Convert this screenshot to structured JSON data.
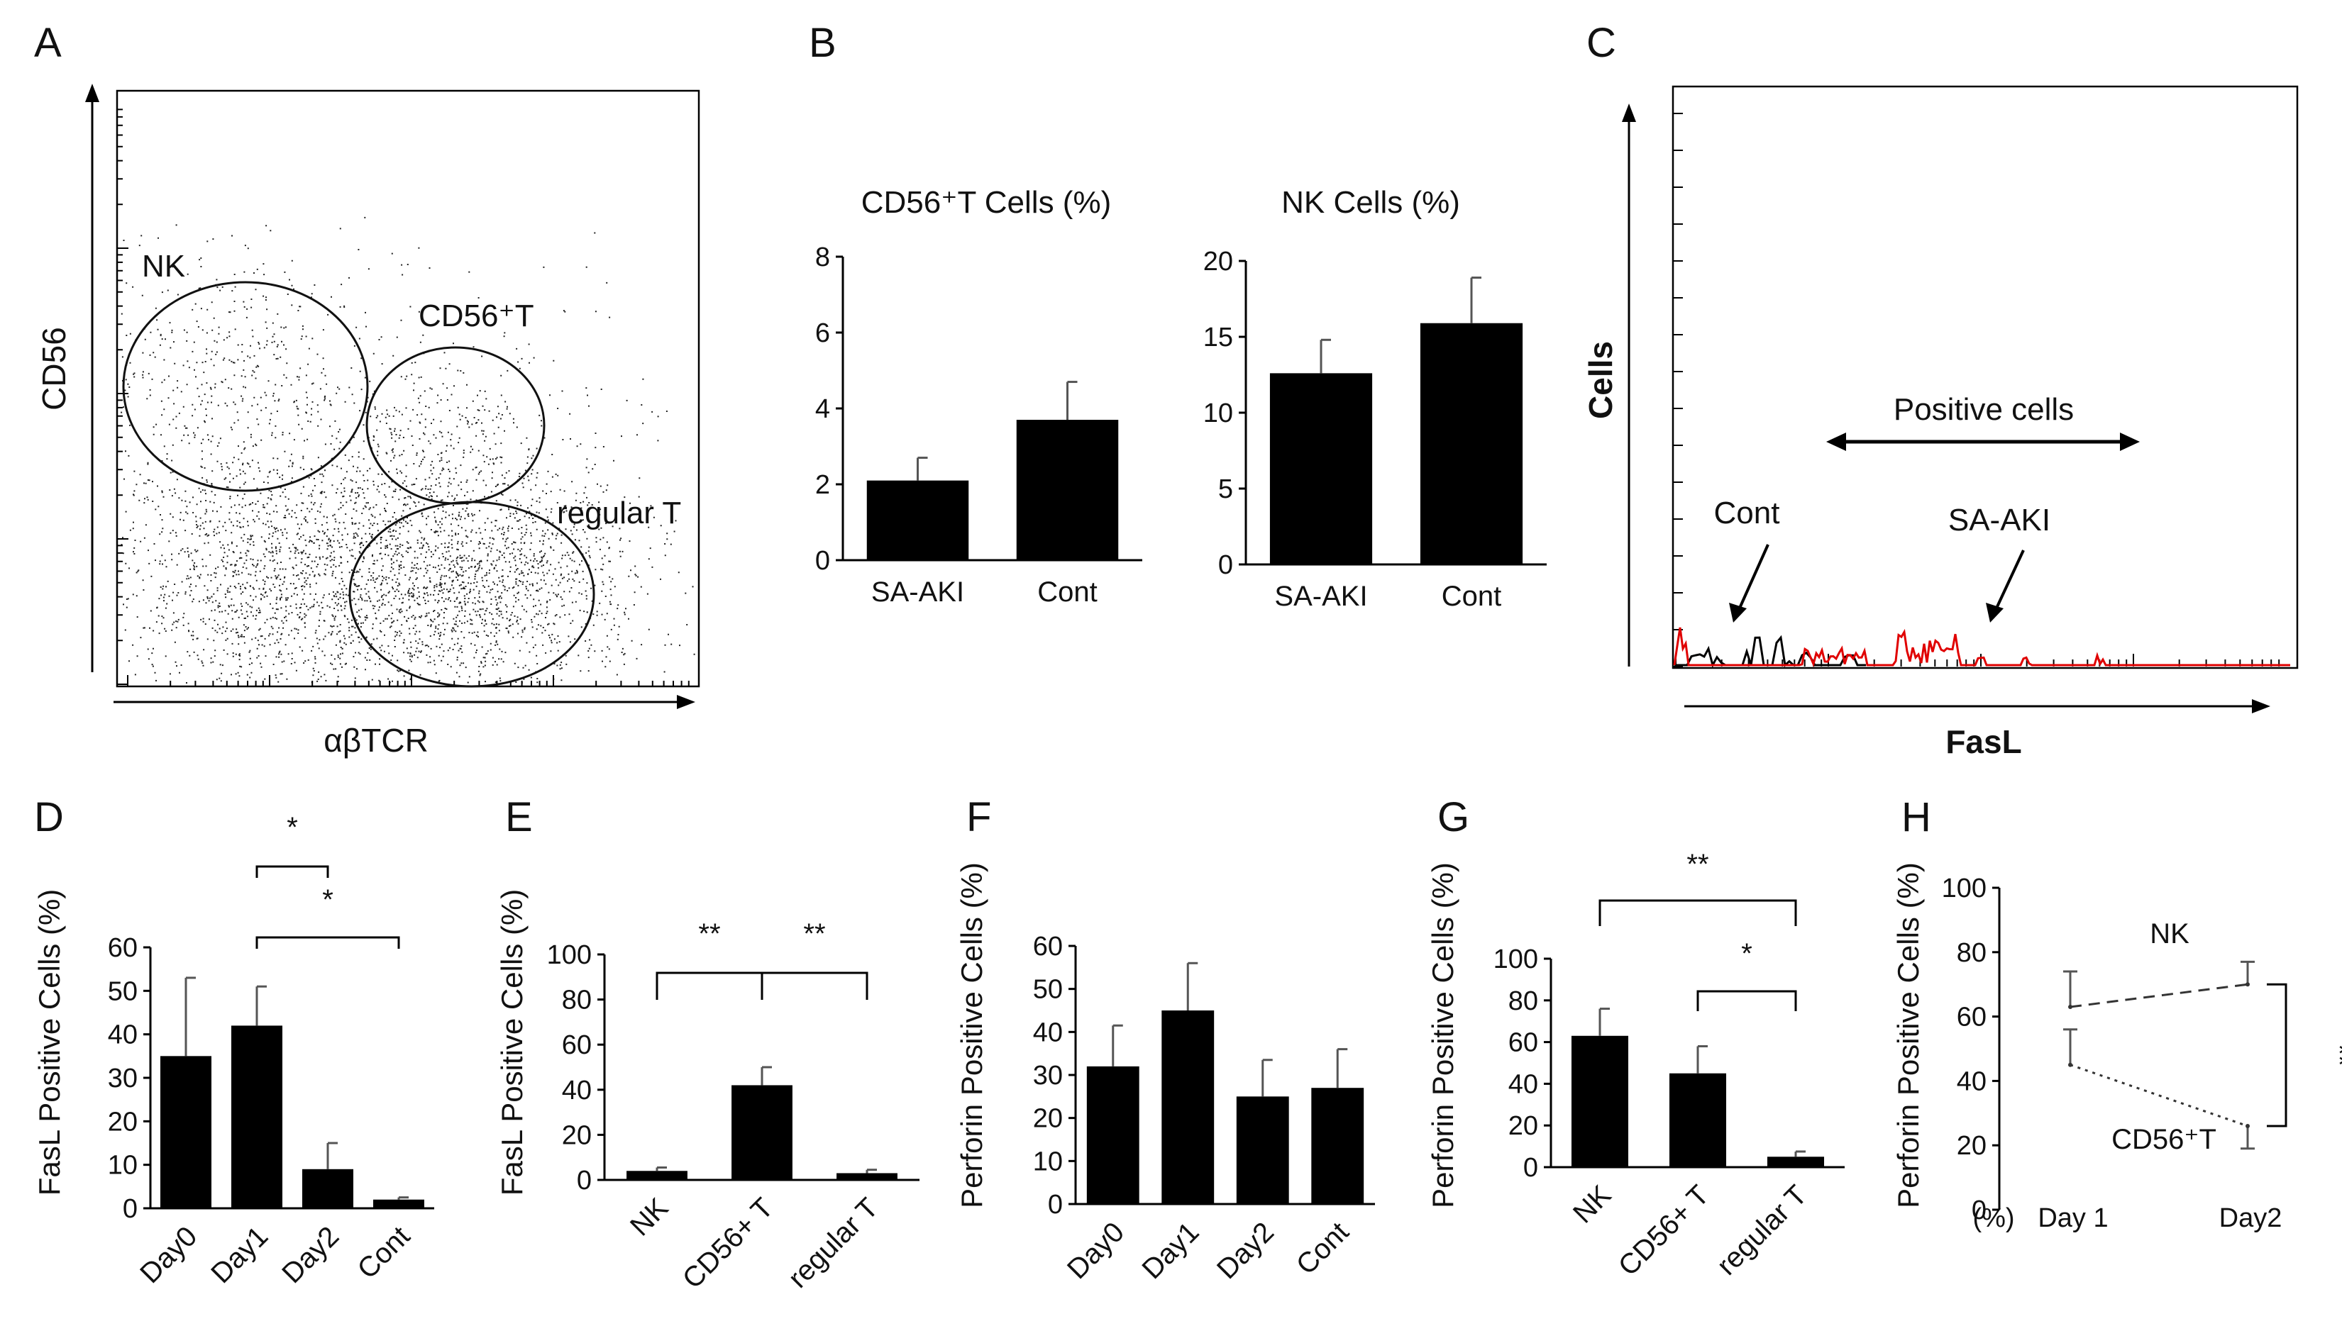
{
  "panel_labels": [
    "A",
    "B",
    "C",
    "D",
    "E",
    "F",
    "G",
    "H"
  ],
  "colors": {
    "bars": "#000000",
    "cont_hist": "#000000",
    "saaki_hist": "#e00000"
  },
  "chart_data": [
    {
      "id": "A",
      "type": "scatter",
      "xlabel": "αβTCR",
      "ylabel": "CD56",
      "gates": [
        "NK",
        "CD56⁺T",
        "regular T"
      ]
    },
    {
      "id": "B1",
      "type": "bar",
      "title": "CD56⁺T Cells (%)",
      "categories": [
        "SA-AKI",
        "Cont"
      ],
      "values": [
        2.1,
        3.7
      ],
      "errors": [
        0.6,
        1.0
      ],
      "ylim": [
        0,
        8
      ],
      "yticks": [
        "0",
        "2",
        "4",
        "6",
        "8"
      ]
    },
    {
      "id": "B2",
      "type": "bar",
      "title": "NK Cells (%)",
      "categories": [
        "SA-AKI",
        "Cont"
      ],
      "values": [
        12.6,
        15.9
      ],
      "errors": [
        2.2,
        3.0
      ],
      "ylim": [
        0,
        20
      ],
      "yticks": [
        "0",
        "5",
        "10",
        "15",
        "20"
      ]
    },
    {
      "id": "C",
      "type": "line",
      "xlabel": "FasL",
      "ylabel": "Cells",
      "annotations": [
        "Positive cells",
        "Cont",
        "SA-AKI"
      ],
      "series": [
        {
          "name": "Cont",
          "color": "#000000"
        },
        {
          "name": "SA-AKI",
          "color": "#e00000"
        }
      ]
    },
    {
      "id": "D",
      "type": "bar",
      "ylabel": "FasL Positive Cells (%)",
      "categories": [
        "Day0",
        "Day1",
        "Day2",
        "Cont"
      ],
      "values": [
        35,
        42,
        9,
        2
      ],
      "errors": [
        18,
        9,
        6,
        0.5
      ],
      "ylim": [
        0,
        60
      ],
      "yticks": [
        "0",
        "10",
        "20",
        "30",
        "40",
        "50",
        "60"
      ],
      "significance": [
        {
          "from": 1,
          "to": 2,
          "label": "*"
        },
        {
          "from": 1,
          "to": 3,
          "label": "*"
        }
      ]
    },
    {
      "id": "E",
      "type": "bar",
      "ylabel": "FasL Positive Cells (%)",
      "categories": [
        "NK",
        "CD56+ T",
        "regular T"
      ],
      "values": [
        4,
        42,
        3
      ],
      "errors": [
        1.5,
        8,
        1.5
      ],
      "ylim": [
        0,
        100
      ],
      "yticks": [
        "0",
        "20",
        "40",
        "60",
        "80",
        "100"
      ],
      "significance": [
        {
          "from": 0,
          "to": 1,
          "label": "**"
        },
        {
          "from": 1,
          "to": 2,
          "label": "**"
        }
      ]
    },
    {
      "id": "F",
      "type": "bar",
      "ylabel": "Perforin Positive Cells (%)",
      "categories": [
        "Day0",
        "Day1",
        "Day2",
        "Cont"
      ],
      "values": [
        32,
        45,
        25,
        27
      ],
      "errors": [
        9.5,
        11,
        8.5,
        9
      ],
      "ylim": [
        0,
        60
      ],
      "yticks": [
        "0",
        "10",
        "20",
        "30",
        "40",
        "50",
        "60"
      ]
    },
    {
      "id": "G",
      "type": "bar",
      "ylabel": "Perforin Positive Cells (%)",
      "categories": [
        "NK",
        "CD56+ T",
        "regular T"
      ],
      "values": [
        63,
        45,
        5
      ],
      "errors": [
        13,
        13,
        2.5
      ],
      "ylim": [
        0,
        100
      ],
      "yticks": [
        "0",
        "20",
        "40",
        "60",
        "80",
        "100"
      ],
      "significance": [
        {
          "from": 0,
          "to": 2,
          "label": "**"
        },
        {
          "from": 1,
          "to": 2,
          "label": "*"
        }
      ]
    },
    {
      "id": "H",
      "type": "line",
      "ylabel": "Perforin Positive Cells (%)",
      "x_unit": "(%)",
      "categories": [
        "Day 1",
        "Day2"
      ],
      "series": [
        {
          "name": "NK",
          "values": [
            63,
            70
          ],
          "errors": [
            11,
            7
          ],
          "style": "dashed"
        },
        {
          "name": "CD56⁺T",
          "values": [
            45,
            26
          ],
          "errors": [
            11,
            7
          ],
          "style": "dotted"
        }
      ],
      "ylim": [
        0,
        100
      ],
      "yticks": [
        "0",
        "20",
        "40",
        "60",
        "80",
        "100"
      ],
      "significance": [
        {
          "label": "**"
        }
      ]
    }
  ]
}
